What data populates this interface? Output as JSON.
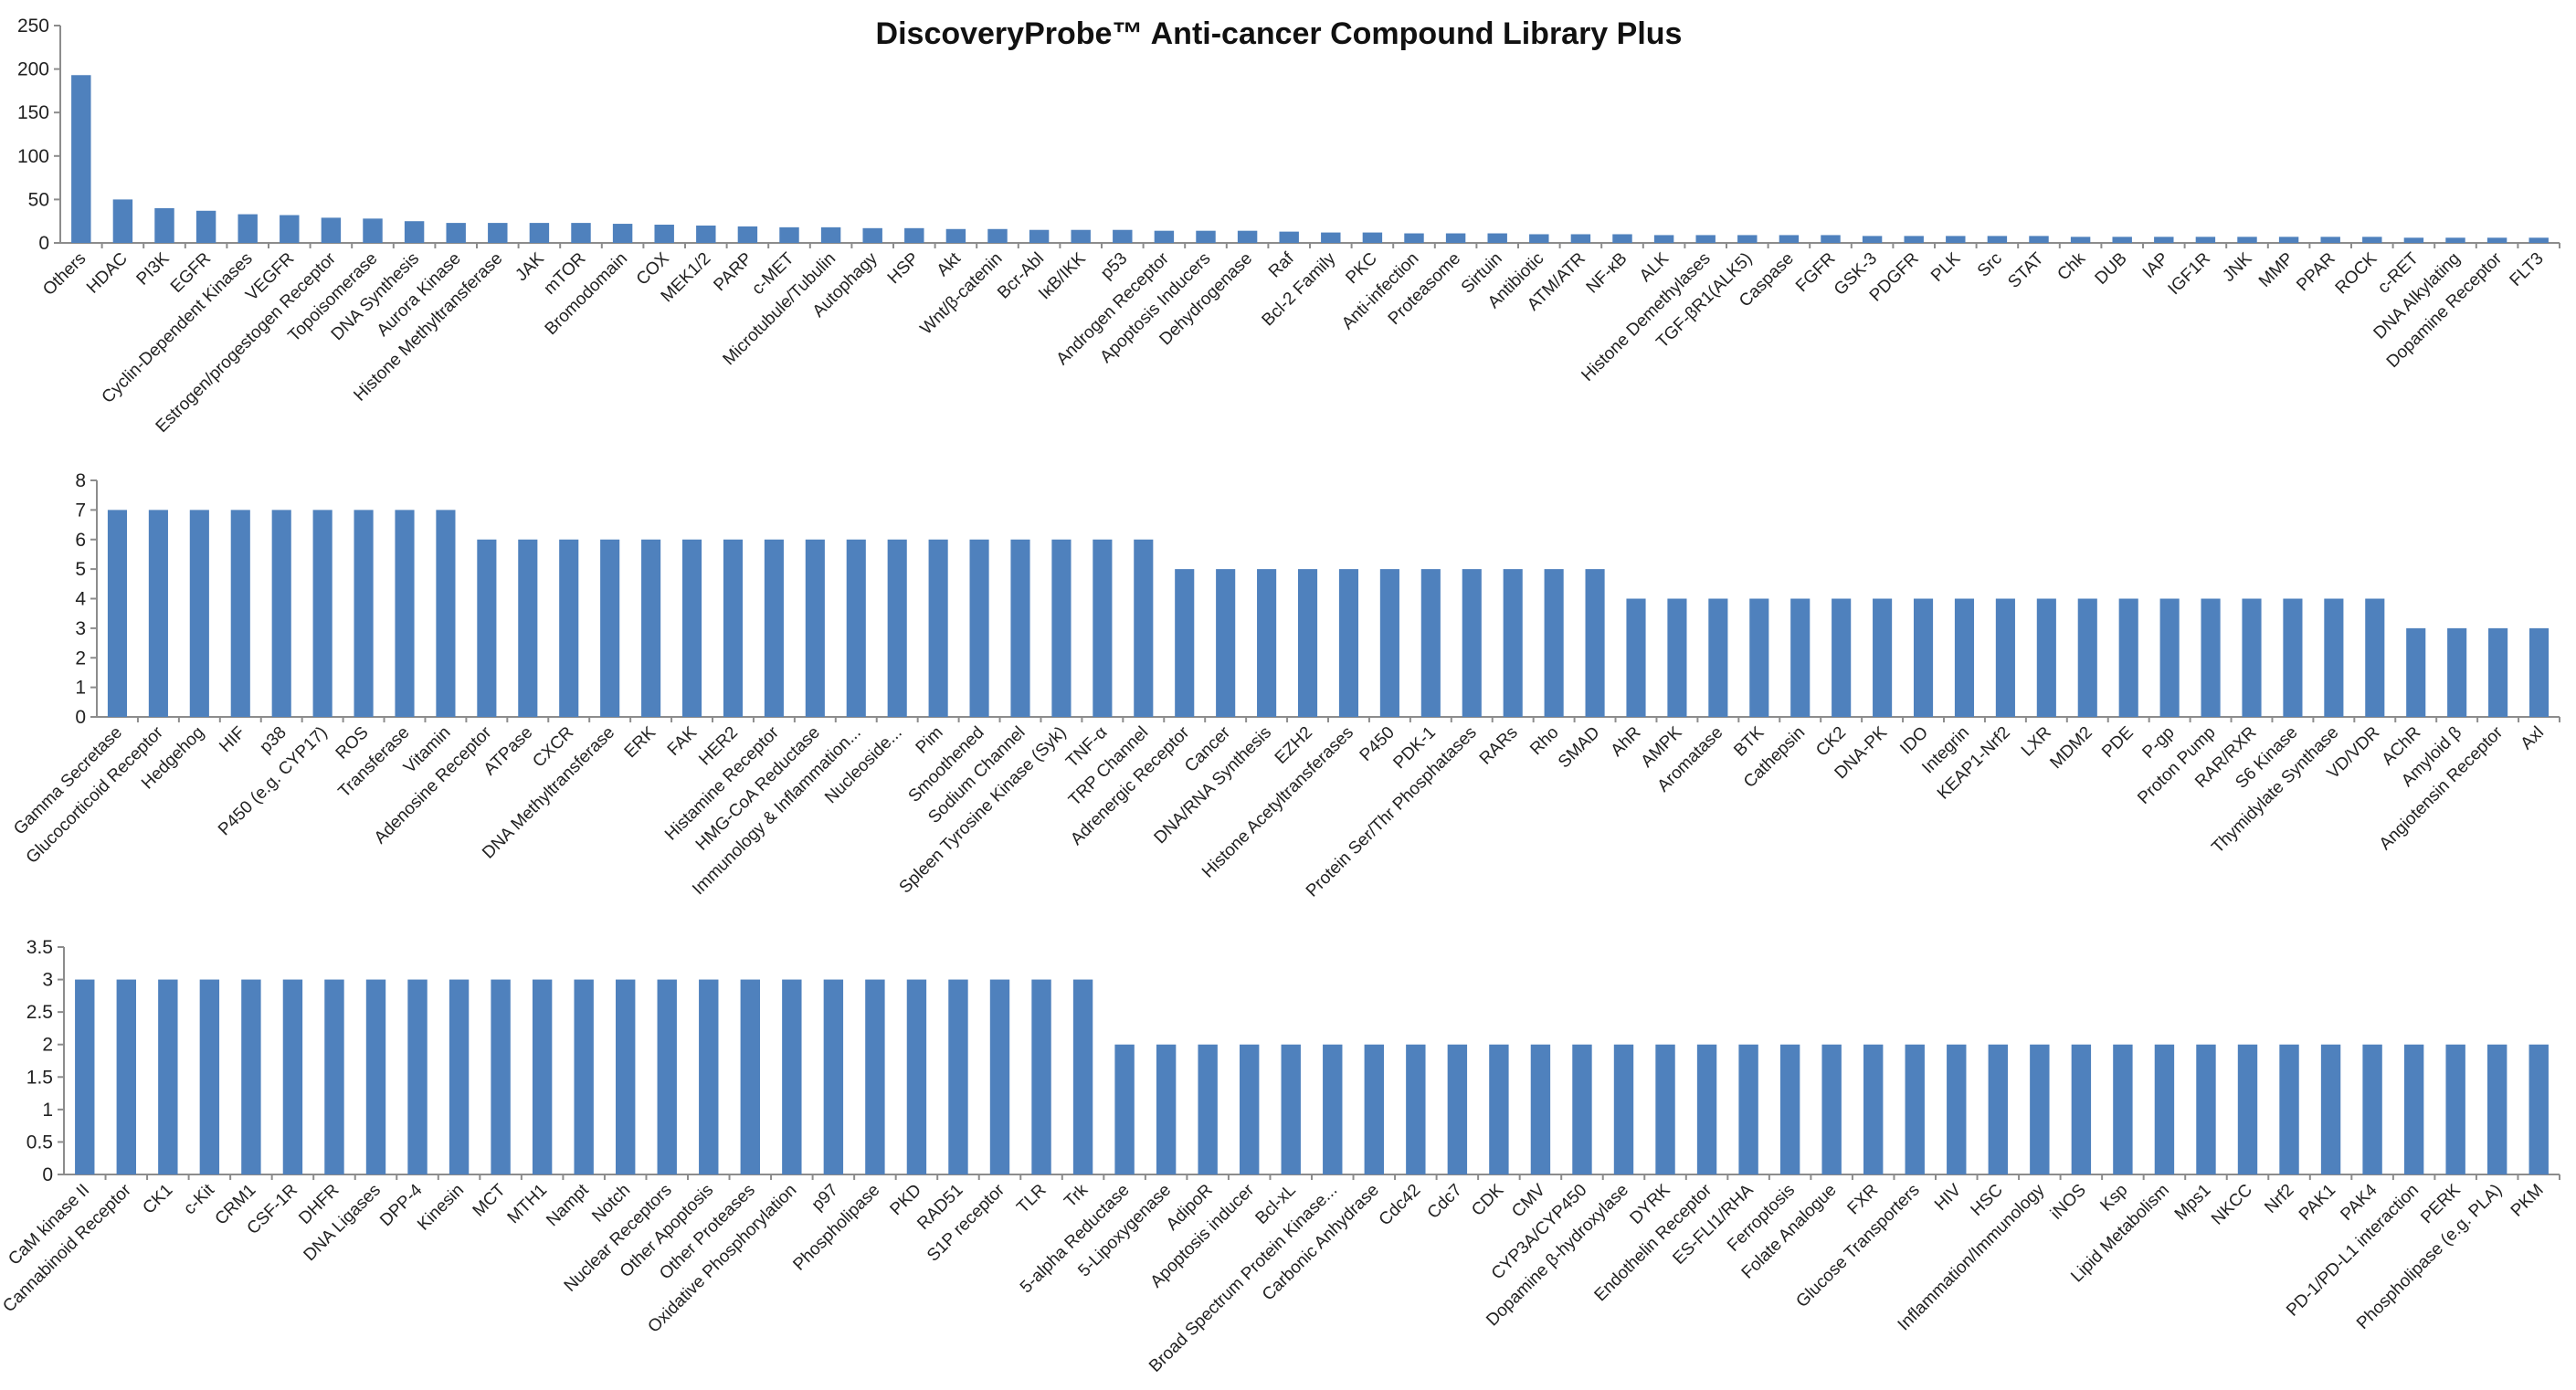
{
  "chart_data": [
    {
      "type": "bar",
      "title": "DiscoveryProbe™ Anti-cancer Compound Library Plus",
      "xlabel": "",
      "ylabel": "",
      "ylim": [
        0,
        250
      ],
      "yticks": [
        0,
        50,
        100,
        150,
        200,
        250
      ],
      "grid": false,
      "legend": "none",
      "bar_color": "#4f81bd",
      "categories": [
        "Others",
        "HDAC",
        "PI3K",
        "EGFR",
        "Cyclin-Dependent Kinases",
        "VEGFR",
        "Estrogen/progestogen Receptor",
        "Topoisomerase",
        "DNA Synthesis",
        "Aurora Kinase",
        "Histone Methyltransferase",
        "JAK",
        "mTOR",
        "Bromodomain",
        "COX",
        "MEK1/2",
        "PARP",
        "c-MET",
        "Microtubule/Tubulin",
        "Autophagy",
        "HSP",
        "Akt",
        "Wnt/β-catenin",
        "Bcr-Abl",
        "IκB/IKK",
        "p53",
        "Androgen Receptor",
        "Apoptosis Inducers",
        "Dehydrogenase",
        "Raf",
        "Bcl-2 Family",
        "PKC",
        "Anti-infection",
        "Proteasome",
        "Sirtuin",
        "Antibiotic",
        "ATM/ATR",
        "NF-κB",
        "ALK",
        "Histone Demethylases",
        "TGF-βR1(ALK5)",
        "Caspase",
        "FGFR",
        "GSK-3",
        "PDGFR",
        "PLK",
        "Src",
        "STAT",
        "Chk",
        "DUB",
        "IAP",
        "IGF1R",
        "JNK",
        "MMP",
        "PPAR",
        "ROCK",
        "c-RET",
        "DNA Alkylating",
        "Dopamine Receptor",
        "FLT3"
      ],
      "values": [
        193,
        50,
        40,
        37,
        33,
        32,
        29,
        28,
        25,
        23,
        23,
        23,
        23,
        22,
        21,
        20,
        19,
        18,
        18,
        17,
        17,
        16,
        16,
        15,
        15,
        15,
        14,
        14,
        14,
        13,
        12,
        12,
        11,
        11,
        11,
        10,
        10,
        10,
        9,
        9,
        9,
        9,
        9,
        8,
        8,
        8,
        8,
        8,
        7,
        7,
        7,
        7,
        7,
        7,
        7,
        7,
        6,
        6,
        6,
        6
      ]
    },
    {
      "type": "bar",
      "title": "",
      "xlabel": "",
      "ylabel": "",
      "ylim": [
        0,
        8
      ],
      "yticks": [
        0,
        1,
        2,
        3,
        4,
        5,
        6,
        7,
        8
      ],
      "grid": false,
      "legend": "none",
      "bar_color": "#4f81bd",
      "categories": [
        "Gamma Secretase",
        "Glucocorticoid Receptor",
        "Hedgehog",
        "HIF",
        "p38",
        "P450 (e.g. CYP17)",
        "ROS",
        "Transferase",
        "Vitamin",
        "Adenosine Receptor",
        "ATPase",
        "CXCR",
        "DNA Methyltransferase",
        "ERK",
        "FAK",
        "HER2",
        "Histamine Receptor",
        "HMG-CoA Reductase",
        "Immunology & Inflammation...",
        "Nucleoside...",
        "Pim",
        "Smoothened",
        "Sodium Channel",
        "Spleen Tyrosine Kinase (Syk)",
        "TNF-α",
        "TRP Channel",
        "Adrenergic Receptor",
        "Cancer",
        "DNA/RNA Synthesis",
        "EZH2",
        "Histone Acetyltransferases",
        "P450",
        "PDK-1",
        "Protein Ser/Thr Phosphatases",
        "RARs",
        "Rho",
        "SMAD",
        "AhR",
        "AMPK",
        "Aromatase",
        "BTK",
        "Cathepsin",
        "CK2",
        "DNA-PK",
        "IDO",
        "Integrin",
        "KEAP1-Nrf2",
        "LXR",
        "MDM2",
        "PDE",
        "P-gp",
        "Proton Pump",
        "RAR/RXR",
        "S6 Kinase",
        "Thymidylate Synthase",
        "VD/VDR",
        "AChR",
        "Amyloid β",
        "Angiotensin Receptor",
        "Axl"
      ],
      "values": [
        7,
        7,
        7,
        7,
        7,
        7,
        7,
        7,
        7,
        6,
        6,
        6,
        6,
        6,
        6,
        6,
        6,
        6,
        6,
        6,
        6,
        6,
        6,
        6,
        6,
        6,
        5,
        5,
        5,
        5,
        5,
        5,
        5,
        5,
        5,
        5,
        5,
        4,
        4,
        4,
        4,
        4,
        4,
        4,
        4,
        4,
        4,
        4,
        4,
        4,
        4,
        4,
        4,
        4,
        4,
        4,
        3,
        3,
        3,
        3
      ]
    },
    {
      "type": "bar",
      "title": "",
      "xlabel": "",
      "ylabel": "",
      "ylim": [
        0,
        3.5
      ],
      "yticks": [
        0,
        0.5,
        1,
        1.5,
        2,
        2.5,
        3,
        3.5
      ],
      "grid": false,
      "legend": "none",
      "bar_color": "#4f81bd",
      "categories": [
        "CaM kinase II",
        "Cannabinoid Receptor",
        "CK1",
        "c-Kit",
        "CRM1",
        "CSF-1R",
        "DHFR",
        "DNA Ligases",
        "DPP-4",
        "Kinesin",
        "MCT",
        "MTH1",
        "Nampt",
        "Notch",
        "Nuclear Receptors",
        "Other Apoptosis",
        "Other Proteases",
        "Oxidative Phosphorylation",
        "p97",
        "Phospholipase",
        "PKD",
        "RAD51",
        "S1P receptor",
        "TLR",
        "Trk",
        "5-alpha Reductase",
        "5-Lipoxygenase",
        "AdipoR",
        "Apoptosis inducer",
        "Bcl-xL",
        "Broad Spectrum Protein Kinase...",
        "Carbonic Anhydrase",
        "Cdc42",
        "Cdc7",
        "CDK",
        "CMV",
        "CYP3A/CYP450",
        "Dopamine β-hydroxylase",
        "DYRK",
        "Endothelin Receptor",
        "ES-FLI1/RHA",
        "Ferroptosis",
        "Folate Analogue",
        "FXR",
        "Glucose Transporters",
        "HIV",
        "HSC",
        "Inflammation/Immunology",
        "iNOS",
        "Ksp",
        "Lipid Metabolism",
        "Mps1",
        "NKCC",
        "Nrf2",
        "PAK1",
        "PAK4",
        "PD-1/PD-L1 interaction",
        "PERK",
        "Phospholipase (e.g. PLA)",
        "PKM"
      ],
      "values": [
        3,
        3,
        3,
        3,
        3,
        3,
        3,
        3,
        3,
        3,
        3,
        3,
        3,
        3,
        3,
        3,
        3,
        3,
        3,
        3,
        3,
        3,
        3,
        3,
        3,
        2,
        2,
        2,
        2,
        2,
        2,
        2,
        2,
        2,
        2,
        2,
        2,
        2,
        2,
        2,
        2,
        2,
        2,
        2,
        2,
        2,
        2,
        2,
        2,
        2,
        2,
        2,
        2,
        2,
        2,
        2,
        2,
        2,
        2,
        2
      ]
    }
  ]
}
